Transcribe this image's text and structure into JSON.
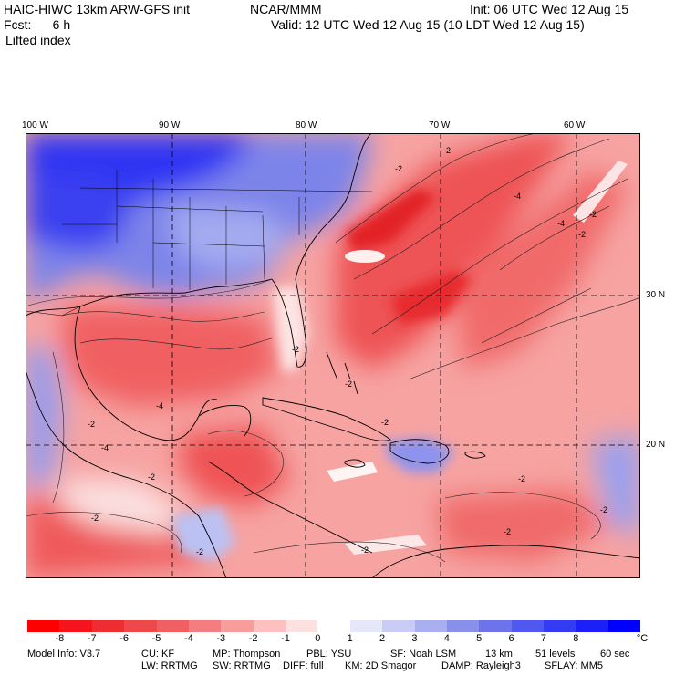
{
  "header": {
    "model_title": "HAIC-HIWC 13km ARW-GFS init",
    "org": "NCAR/MMM",
    "init": "Init: 06 UTC Wed 12 Aug 15",
    "fcst": "Fcst:      6 h",
    "valid": "Valid: 12 UTC Wed 12 Aug 15 (10 LDT Wed 12 Aug 15)",
    "field": "Lifted index"
  },
  "axes": {
    "lon_labels": [
      "100 W",
      "90 W",
      "80 W",
      "70 W",
      "60 W"
    ],
    "lat_labels": [
      "30 N",
      "20 N"
    ]
  },
  "colorbar": {
    "colors": [
      "#ff0000",
      "#f5141b",
      "#ee2d32",
      "#ee484b",
      "#f06062",
      "#f47e7f",
      "#f89c9c",
      "#fcc0c0",
      "#fde0e0",
      "#ffffff",
      "#e6e8fa",
      "#c9cdf5",
      "#a8aef0",
      "#8890ec",
      "#6d73ec",
      "#5058ef",
      "#333cf2",
      "#1a20f7",
      "#0000ff"
    ],
    "ticks": [
      "-8",
      "-7",
      "-6",
      "-5",
      "-4",
      "-3",
      "-2",
      "-1",
      "0",
      "1",
      "2",
      "3",
      "4",
      "5",
      "6",
      "7",
      "8"
    ],
    "unit": "°C"
  },
  "footer": {
    "line1": [
      "Model Info: V3.7",
      "CU: KF",
      "MP: Thompson",
      "PBL: YSU",
      "SF: Noah LSM",
      "13 km",
      "51 levels",
      "60 sec"
    ],
    "line2": [
      "LW: RRTMG",
      "SW: RRTMG",
      "DIFF: full",
      "KM: 2D Smagor",
      "DAMP: Rayleigh3",
      "SFLAY: MM5"
    ]
  },
  "contour_labels": [
    "-2",
    "-2",
    "-4",
    "-4",
    "-2",
    "-2",
    "-4",
    "-2",
    "-2",
    "-4",
    "-2",
    "-2",
    "-2",
    "-2",
    "-2",
    "-2",
    "-2",
    "-2",
    "-2"
  ]
}
